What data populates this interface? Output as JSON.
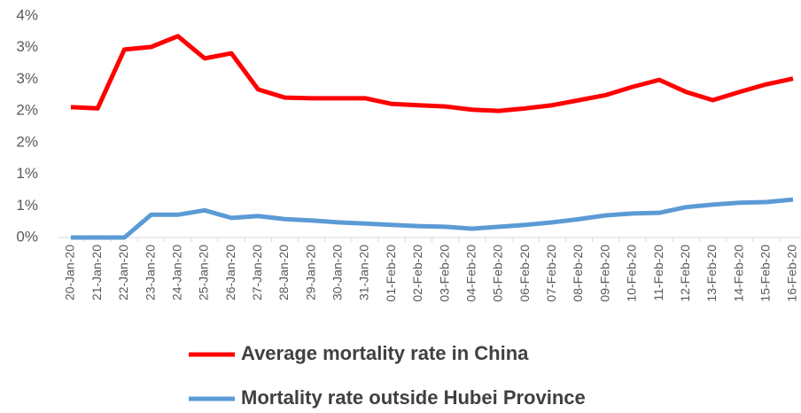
{
  "chart_data": {
    "type": "line",
    "categories": [
      "20-Jan-20",
      "21-Jan-20",
      "22-Jan-20",
      "23-Jan-20",
      "24-Jan-20",
      "25-Jan-20",
      "26-Jan-20",
      "27-Jan-20",
      "28-Jan-20",
      "29-Jan-20",
      "30-Jan-20",
      "31-Jan-20",
      "01-Feb-20",
      "02-Feb-20",
      "03-Feb-20",
      "04-Feb-20",
      "05-Feb-20",
      "06-Feb-20",
      "07-Feb-20",
      "08-Feb-20",
      "09-Feb-20",
      "10-Feb-20",
      "11-Feb-20",
      "12-Feb-20",
      "13-Feb-20",
      "14-Feb-20",
      "15-Feb-20",
      "16-Feb-20"
    ],
    "series": [
      {
        "name": "Average mortality rate in China",
        "color": "#ff0000",
        "values": [
          2.06,
          2.04,
          2.97,
          3.01,
          3.18,
          2.83,
          2.91,
          2.34,
          2.21,
          2.2,
          2.2,
          2.2,
          2.11,
          2.09,
          2.07,
          2.02,
          2.0,
          2.04,
          2.09,
          2.17,
          2.25,
          2.38,
          2.49,
          2.3,
          2.17,
          2.3,
          2.42,
          2.51
        ]
      },
      {
        "name": "Mortality rate outside Hubei Province",
        "color": "#5b9bd5",
        "values": [
          0,
          0,
          0,
          0.36,
          0.36,
          0.43,
          0.31,
          0.34,
          0.29,
          0.27,
          0.24,
          0.22,
          0.2,
          0.18,
          0.17,
          0.14,
          0.17,
          0.2,
          0.24,
          0.29,
          0.35,
          0.38,
          0.39,
          0.48,
          0.52,
          0.55,
          0.56,
          0.6
        ]
      }
    ],
    "ylim": [
      0,
      3.5
    ],
    "yticks": [
      {
        "value": 0,
        "label": "0%"
      },
      {
        "value": 0.5,
        "label": "1%"
      },
      {
        "value": 1,
        "label": "1%"
      },
      {
        "value": 1.5,
        "label": "2%"
      },
      {
        "value": 2,
        "label": "2%"
      },
      {
        "value": 2.5,
        "label": "3%"
      },
      {
        "value": 3,
        "label": "3%"
      },
      {
        "value": 3.5,
        "label": "4%"
      }
    ],
    "grid": false,
    "legend": "bottom"
  }
}
